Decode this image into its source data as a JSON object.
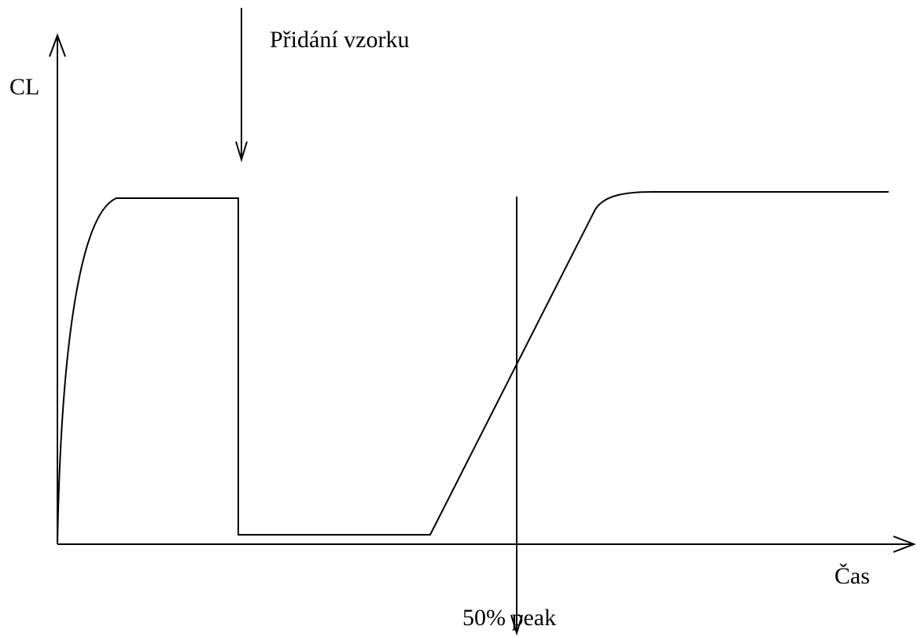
{
  "axes": {
    "y_label": "CL",
    "x_label": "Čas"
  },
  "annotations": {
    "sample_added": "Přidání vzorku",
    "peak": "50% peak"
  }
}
